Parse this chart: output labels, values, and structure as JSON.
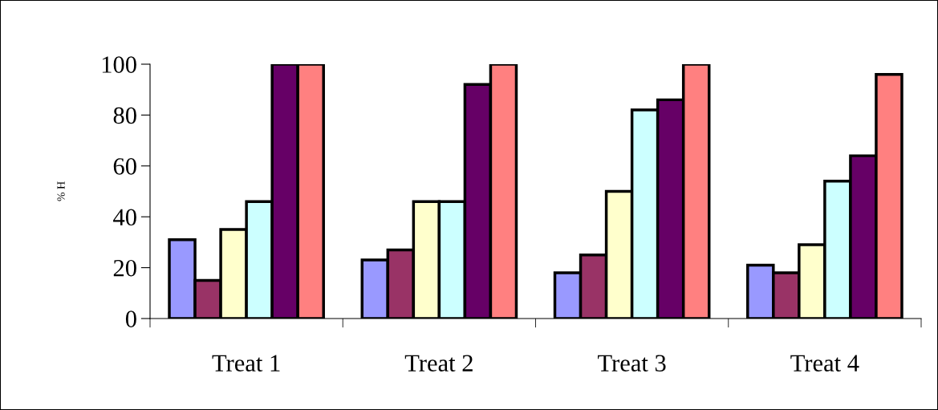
{
  "chart_data": {
    "type": "bar",
    "ylabel": "% H",
    "categories": [
      "Treat 1",
      "Treat 2",
      "Treat 3",
      "Treat 4"
    ],
    "series": [
      {
        "color": "#9999ff",
        "values": [
          31,
          23,
          18,
          21
        ]
      },
      {
        "color": "#993366",
        "values": [
          15,
          27,
          25,
          18
        ]
      },
      {
        "color": "#ffffcc",
        "values": [
          35,
          46,
          50,
          29
        ]
      },
      {
        "color": "#ccffff",
        "values": [
          46,
          46,
          82,
          54
        ]
      },
      {
        "color": "#660066",
        "values": [
          100,
          92,
          86,
          64
        ]
      },
      {
        "color": "#ff8080",
        "values": [
          100,
          100,
          100,
          96
        ]
      }
    ],
    "ylim": [
      0,
      100
    ],
    "yticks": [
      0,
      20,
      40,
      60,
      80,
      100
    ],
    "grid": false
  }
}
